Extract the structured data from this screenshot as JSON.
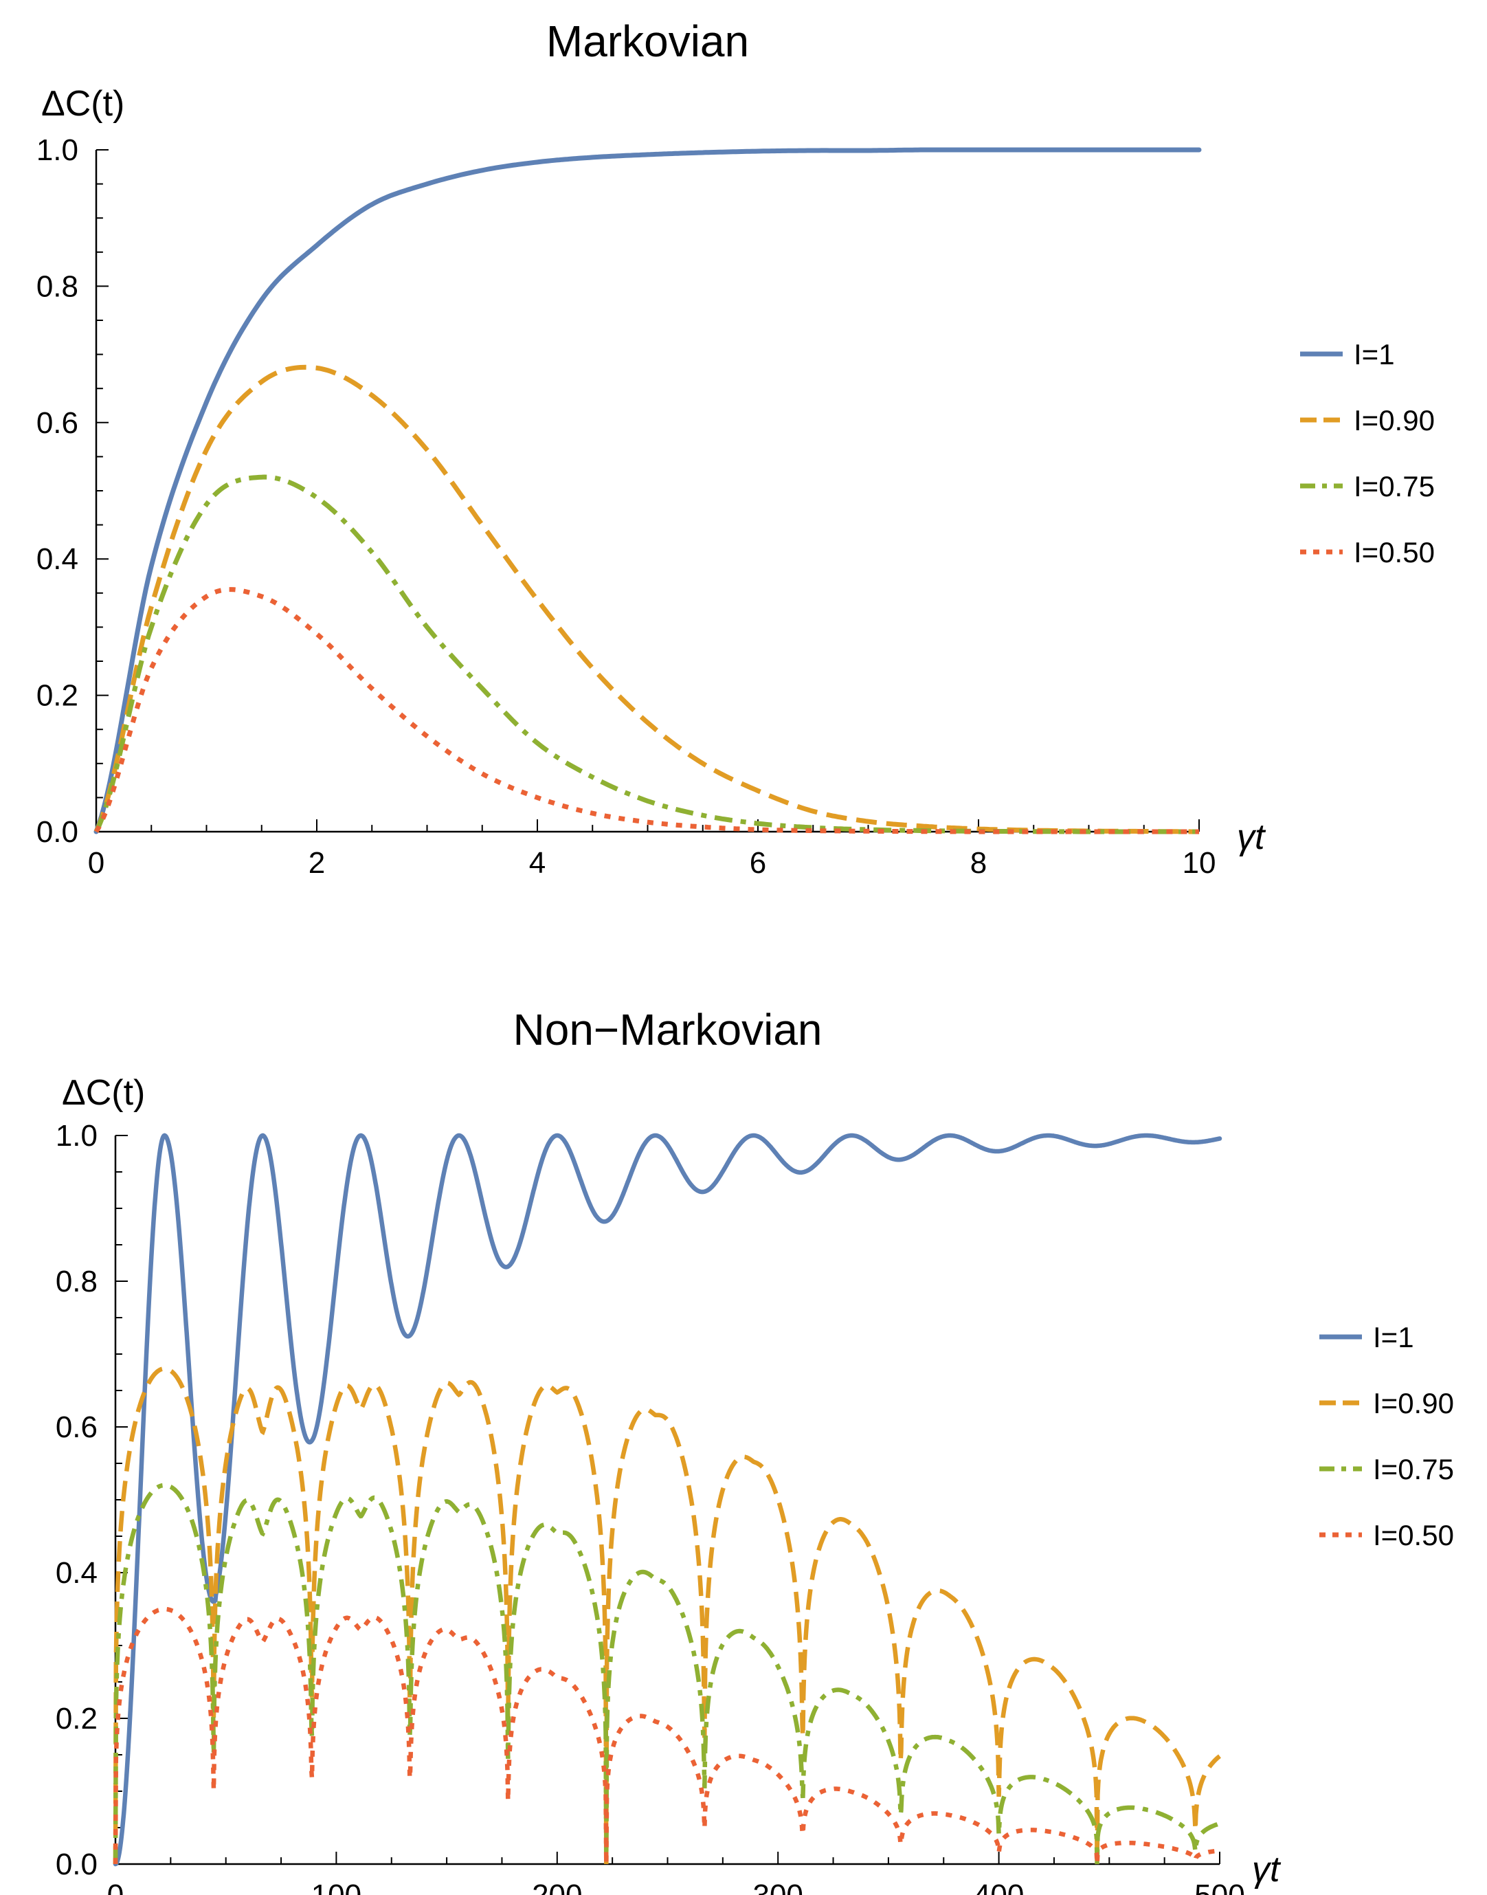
{
  "chart_data": [
    {
      "type": "line",
      "title": "Markovian",
      "xlabel": "γt",
      "ylabel": "ΔC(t)",
      "xlim": [
        0,
        10
      ],
      "ylim": [
        0,
        1.0
      ],
      "xticks": [
        0,
        2,
        4,
        6,
        8,
        10
      ],
      "yticks": [
        0.0,
        0.2,
        0.4,
        0.6,
        0.8,
        1.0
      ],
      "xtick_labels": [
        "0",
        "2",
        "4",
        "6",
        "8",
        "10"
      ],
      "ytick_labels": [
        "0.0",
        "0.2",
        "0.4",
        "0.6",
        "0.8",
        "1.0"
      ],
      "grid": false,
      "legend_position": "right",
      "x": [
        0,
        0.5,
        1,
        1.5,
        2,
        2.5,
        3,
        3.5,
        4,
        4.5,
        5,
        5.5,
        6,
        6.5,
        7,
        7.5,
        8,
        8.5,
        9,
        9.5,
        10
      ],
      "series": [
        {
          "name": "I=1",
          "style": "solid",
          "color": "#5E81B5",
          "values": [
            0,
            0.39,
            0.63,
            0.78,
            0.86,
            0.92,
            0.95,
            0.97,
            0.982,
            0.989,
            0.993,
            0.996,
            0.998,
            0.999,
            0.999,
            1.0,
            1.0,
            1.0,
            1.0,
            1.0,
            1.0
          ]
        },
        {
          "name": "I=0.90",
          "style": "dashed",
          "color": "#E19C24",
          "values": [
            0,
            0.33,
            0.56,
            0.66,
            0.68,
            0.64,
            0.56,
            0.45,
            0.34,
            0.24,
            0.16,
            0.1,
            0.06,
            0.03,
            0.015,
            0.008,
            0.004,
            0.002,
            0.001,
            0.0005,
            0
          ]
        },
        {
          "name": "I=0.75",
          "style": "dashdot",
          "color": "#8FB032",
          "values": [
            0,
            0.3,
            0.48,
            0.52,
            0.49,
            0.41,
            0.3,
            0.21,
            0.13,
            0.08,
            0.045,
            0.024,
            0.012,
            0.006,
            0.003,
            0.0015,
            0.0007,
            0.0003,
            0,
            0,
            0
          ]
        },
        {
          "name": "I=0.50",
          "style": "dotted",
          "color": "#EB6235",
          "values": [
            0,
            0.24,
            0.345,
            0.345,
            0.29,
            0.21,
            0.14,
            0.085,
            0.05,
            0.027,
            0.014,
            0.007,
            0.003,
            0.0015,
            0.0007,
            0.0003,
            0,
            0,
            0,
            0,
            0
          ]
        }
      ]
    },
    {
      "type": "line",
      "title": "Non−Markovian",
      "xlabel": "γt",
      "ylabel": "ΔC(t)",
      "xlim": [
        0,
        500
      ],
      "ylim": [
        0,
        1.0
      ],
      "xticks": [
        0,
        100,
        200,
        300,
        400,
        500
      ],
      "yticks": [
        0.0,
        0.2,
        0.4,
        0.6,
        0.8,
        1.0
      ],
      "xtick_labels": [
        "0",
        "100",
        "200",
        "300",
        "400",
        "500"
      ],
      "ytick_labels": [
        "0.0",
        "0.2",
        "0.4",
        "0.6",
        "0.8",
        "1.0"
      ],
      "grid": false,
      "legend_position": "right",
      "oscillation_period": 88.9,
      "decay_tau": 110,
      "series": [
        {
          "name": "I=1",
          "style": "solid",
          "color": "#5E81B5",
          "description_values": "peaks 1.0 at γt≈22.2,66.7,111.1,...; minima ≈0.36 (44), 0.59 (89), 0.74 (133), 0.83 (178), 0.89 (222), 0.93 (267), 0.96 (311), 0.97 (356), 0.98 (400), 0.99 (444)"
        },
        {
          "name": "I=0.90",
          "style": "dashed",
          "color": "#E19C24",
          "envelope_peaks": [
            0.68,
            0.68,
            0.68,
            0.68,
            0.68,
            0.66,
            0.6,
            0.52,
            0.42,
            0.32,
            0.23,
            0.16
          ]
        },
        {
          "name": "I=0.75",
          "style": "dashdot",
          "color": "#8FB032",
          "envelope_peaks": [
            0.52,
            0.52,
            0.52,
            0.52,
            0.5,
            0.44,
            0.36,
            0.27,
            0.2,
            0.14,
            0.09,
            0.06
          ]
        },
        {
          "name": "I=0.50",
          "style": "dotted",
          "color": "#EB6235",
          "envelope_peaks": [
            0.35,
            0.35,
            0.35,
            0.35,
            0.3,
            0.23,
            0.17,
            0.12,
            0.08,
            0.055,
            0.035,
            0.02
          ]
        }
      ]
    }
  ]
}
